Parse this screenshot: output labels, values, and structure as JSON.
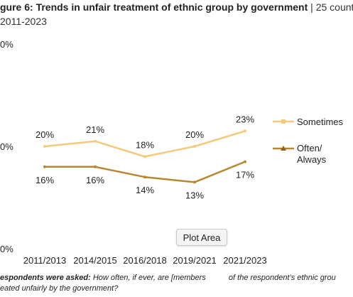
{
  "figure": {
    "title_bold": "gure 6: Trends in unfair treatment of ethnic group by government",
    "title_sep": "|",
    "title_rest": "25 count",
    "subtitle": "2011-2023"
  },
  "chart_data": {
    "type": "line",
    "categories": [
      "2011/2013",
      "2014/2015",
      "2016/2018",
      "2019/2021",
      "2021/2023"
    ],
    "series": [
      {
        "name": "Sometimes",
        "values": [
          20,
          21,
          18,
          20,
          23
        ],
        "color": "#F5C97A",
        "labels": [
          "20%",
          "21%",
          "18%",
          "20%",
          "23%"
        ]
      },
      {
        "name": "Often/ Always",
        "values": [
          16,
          16,
          14,
          13,
          17
        ],
        "color": "#B8862E",
        "labels": [
          "16%",
          "16%",
          "14%",
          "13%",
          "17%"
        ]
      }
    ],
    "y_tick_labels": [
      "0%",
      "0%",
      "0%"
    ],
    "ylim": [
      0,
      40
    ],
    "legend_position": "right",
    "grid": false
  },
  "legend": {
    "sometimes": "Sometimes",
    "often_line1": "Often/",
    "often_line2": "Always"
  },
  "tooltip": {
    "label": "Plot Area"
  },
  "footnote": {
    "line1_bold": "espondents were asked:",
    "line1_text": "How often, if ever, are [members",
    "line1_text2": "of the respondent’s ethnic grou",
    "line2_text": "eated unfairly by the government?"
  }
}
